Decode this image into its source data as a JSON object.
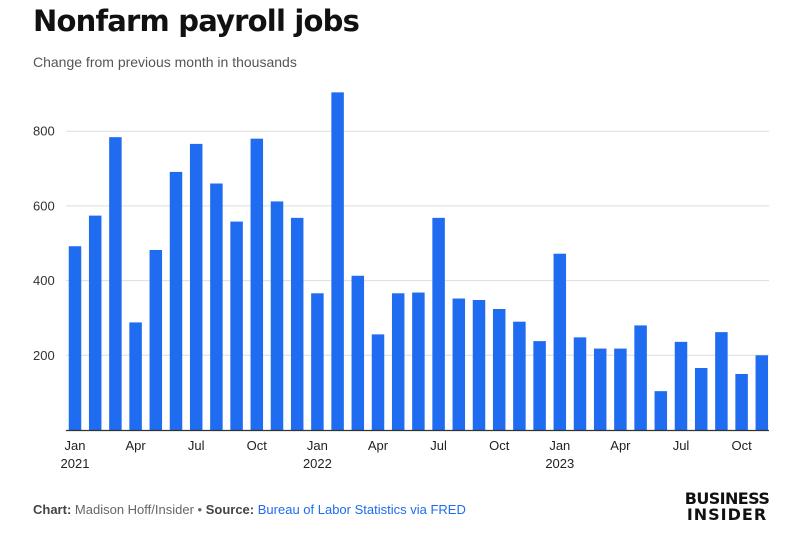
{
  "title": "Nonfarm payroll jobs",
  "subtitle": "Change from previous month in thousands",
  "footer": {
    "chart_label": "Chart:",
    "chart_credit": "Madison Hoff/Insider",
    "separator": "•",
    "source_label": "Source:",
    "source_link": "Bureau of Labor Statistics via FRED"
  },
  "logo": {
    "line1": "BUSINESS",
    "line2": "INSIDER"
  },
  "colors": {
    "bar": "#1f6cf0",
    "grid": "#dddddd",
    "axis": "#333333",
    "link": "#1f6cf0"
  },
  "chart_data": {
    "type": "bar",
    "title": "Nonfarm payroll jobs",
    "subtitle": "Change from previous month in thousands",
    "xlabel": "",
    "ylabel": "",
    "ylim": [
      0,
      920
    ],
    "yticks": [
      200,
      400,
      600,
      800
    ],
    "grid": true,
    "x_tick_labels": [
      {
        "index": 0,
        "label": "Jan",
        "year": "2021"
      },
      {
        "index": 3,
        "label": "Apr"
      },
      {
        "index": 6,
        "label": "Jul"
      },
      {
        "index": 9,
        "label": "Oct"
      },
      {
        "index": 12,
        "label": "Jan",
        "year": "2022"
      },
      {
        "index": 15,
        "label": "Apr"
      },
      {
        "index": 18,
        "label": "Jul"
      },
      {
        "index": 21,
        "label": "Oct"
      },
      {
        "index": 24,
        "label": "Jan",
        "year": "2023"
      },
      {
        "index": 27,
        "label": "Apr"
      },
      {
        "index": 30,
        "label": "Jul"
      },
      {
        "index": 33,
        "label": "Oct"
      }
    ],
    "categories": [
      "Jan 2021",
      "Feb 2021",
      "Mar 2021",
      "Apr 2021",
      "May 2021",
      "Jun 2021",
      "Jul 2021",
      "Aug 2021",
      "Sep 2021",
      "Oct 2021",
      "Nov 2021",
      "Dec 2021",
      "Jan 2022",
      "Feb 2022",
      "Mar 2022",
      "Apr 2022",
      "May 2022",
      "Jun 2022",
      "Jul 2022",
      "Aug 2022",
      "Sep 2022",
      "Oct 2022",
      "Nov 2022",
      "Dec 2022",
      "Jan 2023",
      "Feb 2023",
      "Mar 2023",
      "Apr 2023",
      "May 2023",
      "Jun 2023",
      "Jul 2023",
      "Aug 2023",
      "Sep 2023",
      "Oct 2023",
      "Nov 2023"
    ],
    "values": [
      492,
      574,
      784,
      288,
      482,
      691,
      766,
      660,
      558,
      780,
      612,
      568,
      366,
      904,
      413,
      256,
      366,
      368,
      568,
      352,
      348,
      324,
      290,
      238,
      472,
      248,
      218,
      218,
      280,
      104,
      236,
      166,
      262,
      150,
      200
    ]
  }
}
